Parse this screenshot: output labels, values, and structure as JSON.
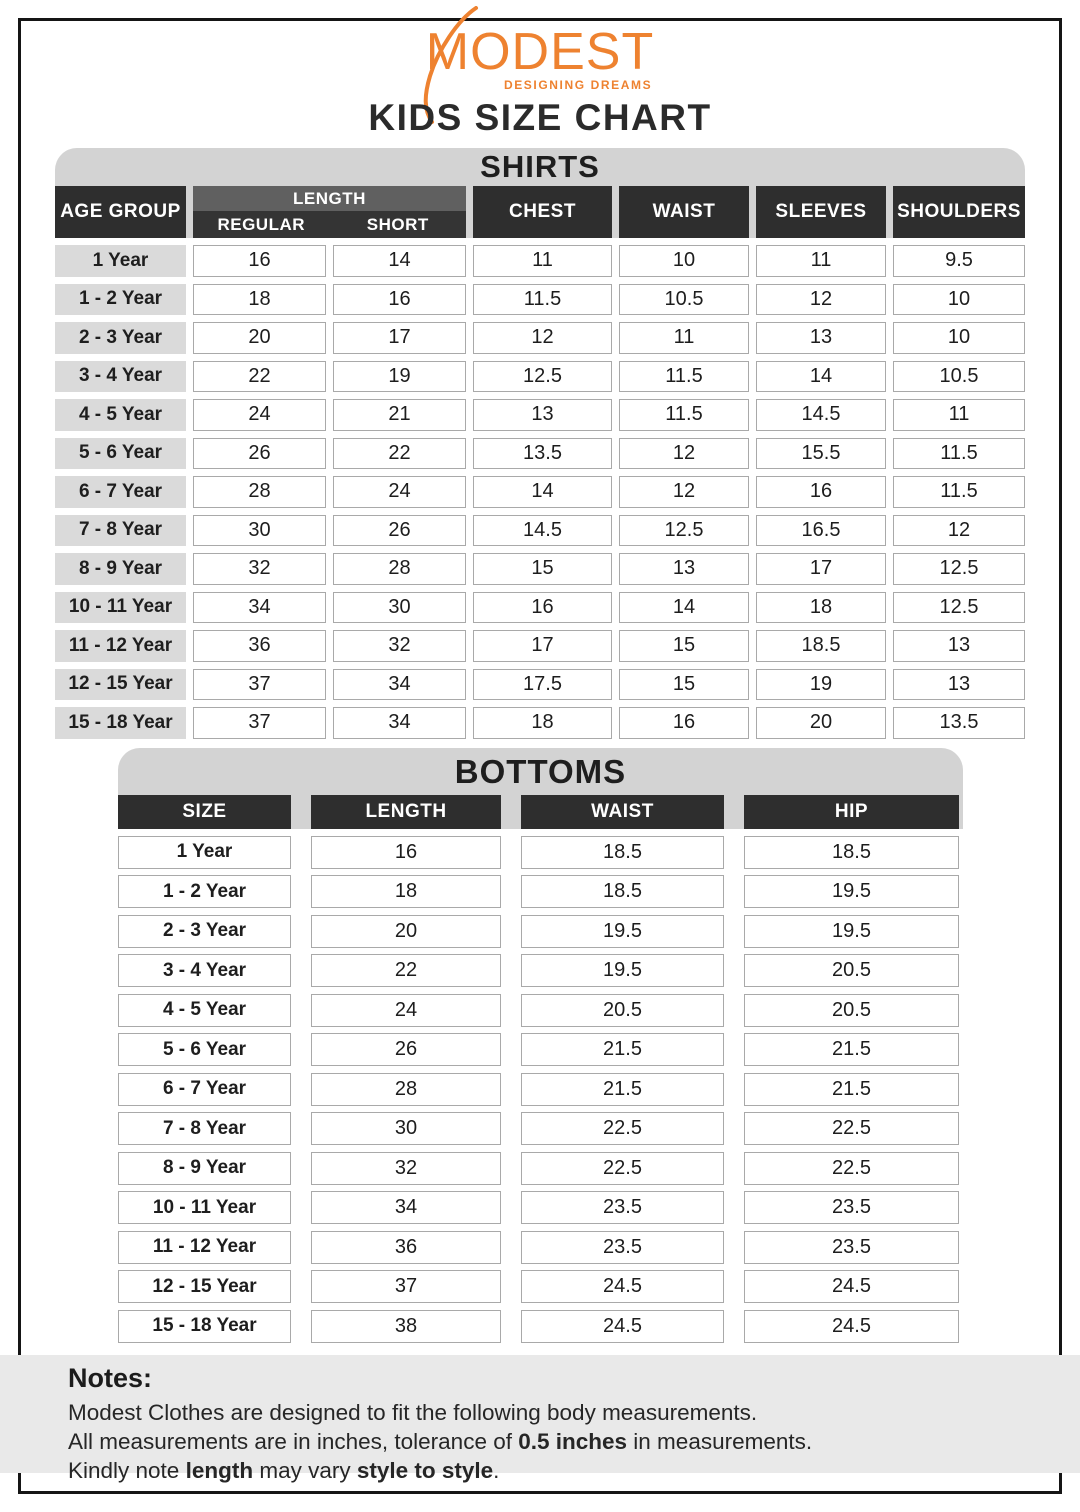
{
  "brand": {
    "name": "MODEST",
    "tagline": "DESIGNING DREAMS"
  },
  "page_title": "KIDS SIZE CHART",
  "colors": {
    "accent_orange": "#EE8230",
    "header_dark": "#2E2E2E",
    "length_bar_gray": "#606060",
    "banner_gray": "#D3D3D3",
    "row_label_gray": "#DADADA",
    "notes_bg": "#E9E9E9",
    "cell_border": "#A9A9A9"
  },
  "shirts": {
    "title": "SHIRTS",
    "headers": {
      "age_group": "AGE GROUP",
      "length_group": "LENGTH",
      "regular": "REGULAR",
      "short": "SHORT",
      "chest": "CHEST",
      "waist": "WAIST",
      "sleeves": "SLEEVES",
      "shoulders": "SHOULDERS"
    },
    "rows": [
      {
        "age": "1 Year",
        "regular": "16",
        "short": "14",
        "chest": "11",
        "waist": "10",
        "sleeves": "11",
        "shoulders": "9.5"
      },
      {
        "age": "1 - 2 Year",
        "regular": "18",
        "short": "16",
        "chest": "11.5",
        "waist": "10.5",
        "sleeves": "12",
        "shoulders": "10"
      },
      {
        "age": "2 - 3 Year",
        "regular": "20",
        "short": "17",
        "chest": "12",
        "waist": "11",
        "sleeves": "13",
        "shoulders": "10"
      },
      {
        "age": "3 - 4 Year",
        "regular": "22",
        "short": "19",
        "chest": "12.5",
        "waist": "11.5",
        "sleeves": "14",
        "shoulders": "10.5"
      },
      {
        "age": "4 - 5 Year",
        "regular": "24",
        "short": "21",
        "chest": "13",
        "waist": "11.5",
        "sleeves": "14.5",
        "shoulders": "11"
      },
      {
        "age": "5 - 6 Year",
        "regular": "26",
        "short": "22",
        "chest": "13.5",
        "waist": "12",
        "sleeves": "15.5",
        "shoulders": "11.5"
      },
      {
        "age": "6 - 7 Year",
        "regular": "28",
        "short": "24",
        "chest": "14",
        "waist": "12",
        "sleeves": "16",
        "shoulders": "11.5"
      },
      {
        "age": "7 - 8 Year",
        "regular": "30",
        "short": "26",
        "chest": "14.5",
        "waist": "12.5",
        "sleeves": "16.5",
        "shoulders": "12"
      },
      {
        "age": "8 - 9 Year",
        "regular": "32",
        "short": "28",
        "chest": "15",
        "waist": "13",
        "sleeves": "17",
        "shoulders": "12.5"
      },
      {
        "age": "10 - 11 Year",
        "regular": "34",
        "short": "30",
        "chest": "16",
        "waist": "14",
        "sleeves": "18",
        "shoulders": "12.5"
      },
      {
        "age": "11 - 12 Year",
        "regular": "36",
        "short": "32",
        "chest": "17",
        "waist": "15",
        "sleeves": "18.5",
        "shoulders": "13"
      },
      {
        "age": "12 - 15 Year",
        "regular": "37",
        "short": "34",
        "chest": "17.5",
        "waist": "15",
        "sleeves": "19",
        "shoulders": "13"
      },
      {
        "age": "15 - 18 Year",
        "regular": "37",
        "short": "34",
        "chest": "18",
        "waist": "16",
        "sleeves": "20",
        "shoulders": "13.5"
      }
    ]
  },
  "bottoms": {
    "title": "BOTTOMS",
    "headers": {
      "size": "SIZE",
      "length": "LENGTH",
      "waist": "WAIST",
      "hip": "HIP"
    },
    "rows": [
      {
        "size": "1 Year",
        "length": "16",
        "waist": "18.5",
        "hip": "18.5"
      },
      {
        "size": "1 - 2 Year",
        "length": "18",
        "waist": "18.5",
        "hip": "19.5"
      },
      {
        "size": "2 - 3 Year",
        "length": "20",
        "waist": "19.5",
        "hip": "19.5"
      },
      {
        "size": "3 - 4 Year",
        "length": "22",
        "waist": "19.5",
        "hip": "20.5"
      },
      {
        "size": "4 - 5 Year",
        "length": "24",
        "waist": "20.5",
        "hip": "20.5"
      },
      {
        "size": "5 - 6 Year",
        "length": "26",
        "waist": "21.5",
        "hip": "21.5"
      },
      {
        "size": "6 - 7 Year",
        "length": "28",
        "waist": "21.5",
        "hip": "21.5"
      },
      {
        "size": "7 - 8 Year",
        "length": "30",
        "waist": "22.5",
        "hip": "22.5"
      },
      {
        "size": "8 - 9 Year",
        "length": "32",
        "waist": "22.5",
        "hip": "22.5"
      },
      {
        "size": "10 - 11 Year",
        "length": "34",
        "waist": "23.5",
        "hip": "23.5"
      },
      {
        "size": "11 - 12 Year",
        "length": "36",
        "waist": "23.5",
        "hip": "23.5"
      },
      {
        "size": "12 - 15 Year",
        "length": "37",
        "waist": "24.5",
        "hip": "24.5"
      },
      {
        "size": "15 - 18 Year",
        "length": "38",
        "waist": "24.5",
        "hip": "24.5"
      }
    ]
  },
  "notes": {
    "heading": "Notes:",
    "lines": [
      [
        {
          "text": "Modest Clothes are designed to fit the following body measurements.",
          "bold": false
        }
      ],
      [
        {
          "text": "All measurements are in inches, tolerance of ",
          "bold": false
        },
        {
          "text": "0.5 inches",
          "bold": true
        },
        {
          "text": " in measurements.",
          "bold": false
        }
      ],
      [
        {
          "text": "Kindly note ",
          "bold": false
        },
        {
          "text": "length",
          "bold": true
        },
        {
          "text": " may vary ",
          "bold": false
        },
        {
          "text": "style to style",
          "bold": true
        },
        {
          "text": ".",
          "bold": false
        }
      ]
    ]
  }
}
